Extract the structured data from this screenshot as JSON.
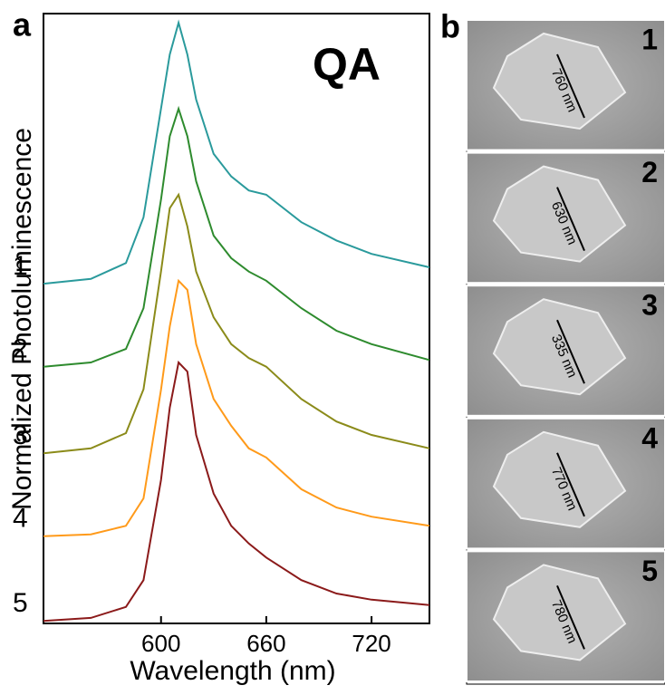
{
  "chart_data": {
    "type": "line",
    "panel_label": "a",
    "annotation": "QA",
    "x_label": "Wavelength (nm)",
    "y_label": "Normalized Photoluminescence",
    "x": [
      533,
      560,
      580,
      590,
      600,
      605,
      610,
      615,
      620,
      630,
      640,
      650,
      660,
      680,
      700,
      720,
      753
    ],
    "xlim": [
      533,
      753
    ],
    "xticks": [
      600,
      660,
      720
    ],
    "ylim": [
      0,
      100
    ],
    "series": [
      {
        "name": "1",
        "color": "#2a9a9c",
        "values": [
          55.7,
          56.5,
          59.1,
          66.6,
          84.4,
          93.3,
          98.5,
          93.3,
          85.9,
          77.0,
          73.3,
          71.0,
          70.3,
          65.8,
          62.8,
          60.6,
          58.4
        ]
      },
      {
        "name": "2",
        "color": "#2e8b2e",
        "values": [
          42.1,
          42.8,
          45.0,
          51.7,
          69.5,
          79.9,
          84.4,
          79.9,
          72.5,
          63.6,
          59.9,
          57.7,
          56.2,
          51.7,
          48.0,
          45.8,
          43.2
        ]
      },
      {
        "name": "3",
        "color": "#8b8b1a",
        "values": [
          27.9,
          28.7,
          31.2,
          38.4,
          57.7,
          68.1,
          70.3,
          65.1,
          57.7,
          50.2,
          45.8,
          43.5,
          42.1,
          36.8,
          33.1,
          30.9,
          28.7
        ]
      },
      {
        "name": "4",
        "color": "#ff9a1a",
        "values": [
          14.3,
          14.6,
          16.0,
          20.5,
          38.3,
          48.7,
          56.2,
          54.7,
          45.8,
          36.8,
          32.4,
          28.7,
          27.2,
          22.0,
          19.0,
          17.5,
          16.0
        ]
      },
      {
        "name": "5",
        "color": "#8b1a1a",
        "values": [
          0.4,
          0.9,
          2.7,
          7.1,
          23.5,
          35.4,
          42.8,
          41.3,
          30.9,
          21.3,
          16.0,
          13.1,
          10.8,
          7.1,
          4.9,
          3.9,
          3.0
        ]
      }
    ]
  },
  "sem": {
    "panel_label": "b",
    "images": [
      {
        "label": "1",
        "scale": "760 nm"
      },
      {
        "label": "2",
        "scale": "630 nm"
      },
      {
        "label": "3",
        "scale": "335 nm"
      },
      {
        "label": "4",
        "scale": "770 nm"
      },
      {
        "label": "5",
        "scale": "780 nm"
      }
    ]
  }
}
